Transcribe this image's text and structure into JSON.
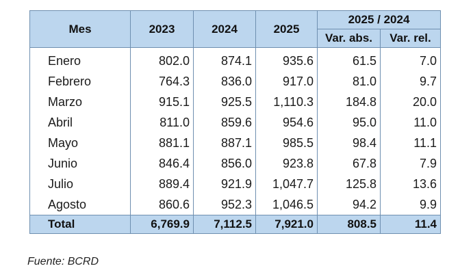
{
  "table": {
    "headers": {
      "mes": "Mes",
      "years": [
        "2023",
        "2024",
        "2025"
      ],
      "comparison_group": "2025 / 2024",
      "var_abs": "Var. abs.",
      "var_rel": "Var. rel."
    },
    "rows": [
      {
        "mes": "Enero",
        "y2023": "802.0",
        "y2024": "874.1",
        "y2025": "935.6",
        "var_abs": "61.5",
        "var_rel": "7.0"
      },
      {
        "mes": "Febrero",
        "y2023": "764.3",
        "y2024": "836.0",
        "y2025": "917.0",
        "var_abs": "81.0",
        "var_rel": "9.7"
      },
      {
        "mes": "Marzo",
        "y2023": "915.1",
        "y2024": "925.5",
        "y2025": "1,110.3",
        "var_abs": "184.8",
        "var_rel": "20.0"
      },
      {
        "mes": "Abril",
        "y2023": "811.0",
        "y2024": "859.6",
        "y2025": "954.6",
        "var_abs": "95.0",
        "var_rel": "11.0"
      },
      {
        "mes": "Mayo",
        "y2023": "881.1",
        "y2024": "887.1",
        "y2025": "985.5",
        "var_abs": "98.4",
        "var_rel": "11.1"
      },
      {
        "mes": "Junio",
        "y2023": "846.4",
        "y2024": "856.0",
        "y2025": "923.8",
        "var_abs": "67.8",
        "var_rel": "7.9"
      },
      {
        "mes": "Julio",
        "y2023": "889.4",
        "y2024": "921.9",
        "y2025": "1,047.7",
        "var_abs": "125.8",
        "var_rel": "13.6"
      },
      {
        "mes": "Agosto",
        "y2023": "860.6",
        "y2024": "952.3",
        "y2025": "1,046.5",
        "var_abs": "94.2",
        "var_rel": "9.9"
      }
    ],
    "total": {
      "mes": "Total",
      "y2023": "6,769.9",
      "y2024": "7,112.5",
      "y2025": "7,921.0",
      "var_abs": "808.5",
      "var_rel": "11.4"
    }
  },
  "source": "Fuente: BCRD",
  "colors": {
    "header_bg": "#bcd6ee",
    "border": "#6e8fb0"
  }
}
